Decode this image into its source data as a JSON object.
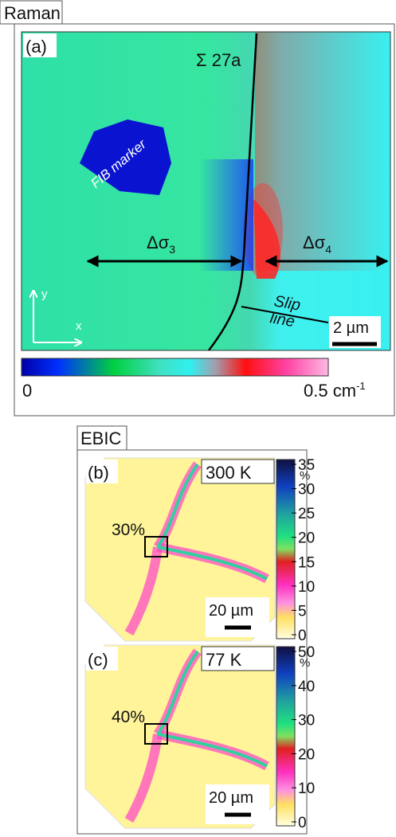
{
  "raman": {
    "label": "Raman",
    "panel_label": "(a)",
    "boundary_label": "Σ 27a",
    "marker_label": "FIB marker",
    "left_stress": {
      "symbol": "Δσ",
      "subscript": "3"
    },
    "right_stress": {
      "symbol": "Δσ",
      "subscript": "4"
    },
    "slip_label": [
      "Slip",
      "line"
    ],
    "scale_bar": "2 µm",
    "axis_y": "y",
    "axis_x": "x",
    "colorbar_min": "0",
    "colorbar_max": {
      "text": "0.5 cm",
      "superscript": "-1"
    }
  },
  "ebic": {
    "label": "EBIC",
    "panels": [
      {
        "panel_label": "(b)",
        "temperature": "300 K",
        "contrast": "30%",
        "scale_bar": "20 µm",
        "unit": "%",
        "ticks": [
          35,
          30,
          25,
          20,
          15,
          10,
          5,
          0
        ]
      },
      {
        "panel_label": "(c)",
        "temperature": "77 K",
        "contrast": "40%",
        "scale_bar": "20 µm",
        "unit": "%",
        "ticks": [
          50,
          40,
          30,
          20,
          10,
          0
        ]
      }
    ]
  }
}
